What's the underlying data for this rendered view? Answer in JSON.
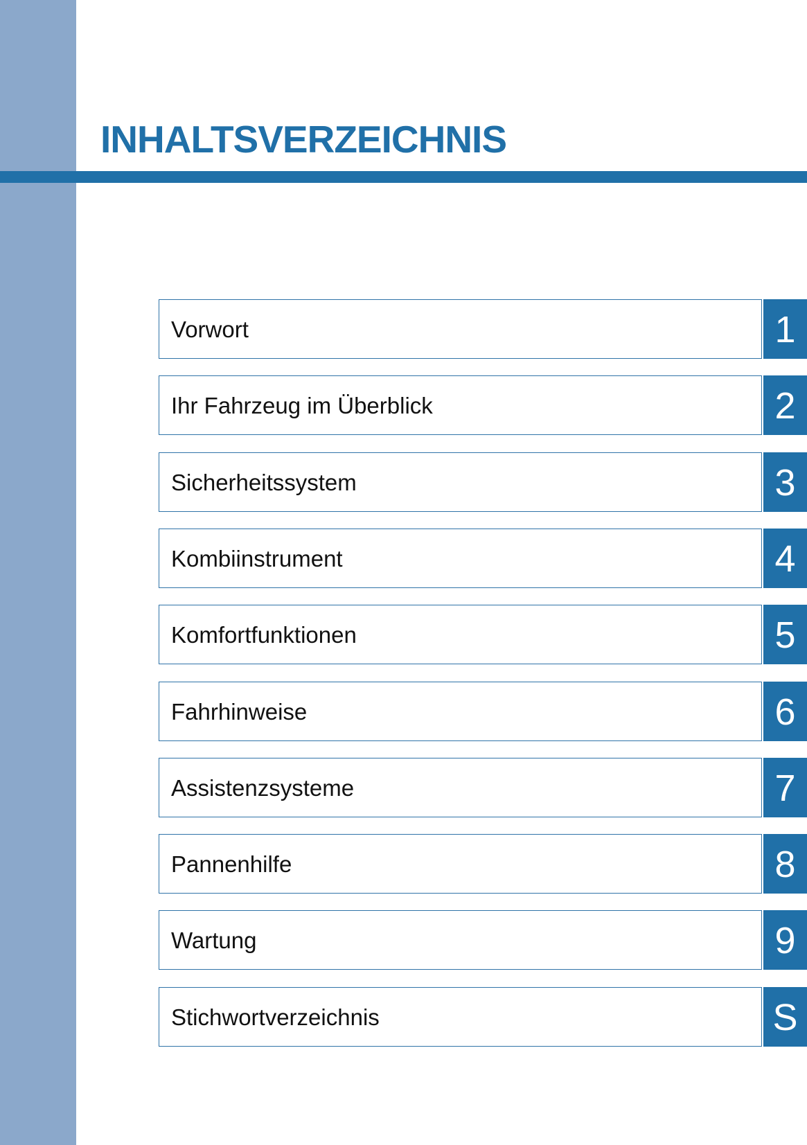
{
  "title": "INHALTSVERZEICHNIS",
  "colors": {
    "accent": "#2070a8",
    "sidebar": "#8ba8cb"
  },
  "chapters": [
    {
      "label": "Vorwort",
      "number": "1"
    },
    {
      "label": "Ihr Fahrzeug im Überblick",
      "number": "2"
    },
    {
      "label": "Sicherheitssystem",
      "number": "3"
    },
    {
      "label": "Kombiinstrument",
      "number": "4"
    },
    {
      "label": "Komfortfunktionen",
      "number": "5"
    },
    {
      "label": "Fahrhinweise",
      "number": "6"
    },
    {
      "label": "Assistenzsysteme",
      "number": "7"
    },
    {
      "label": "Pannenhilfe",
      "number": "8"
    },
    {
      "label": "Wartung",
      "number": "9"
    },
    {
      "label": "Stichwortverzeichnis",
      "number": "S"
    }
  ]
}
